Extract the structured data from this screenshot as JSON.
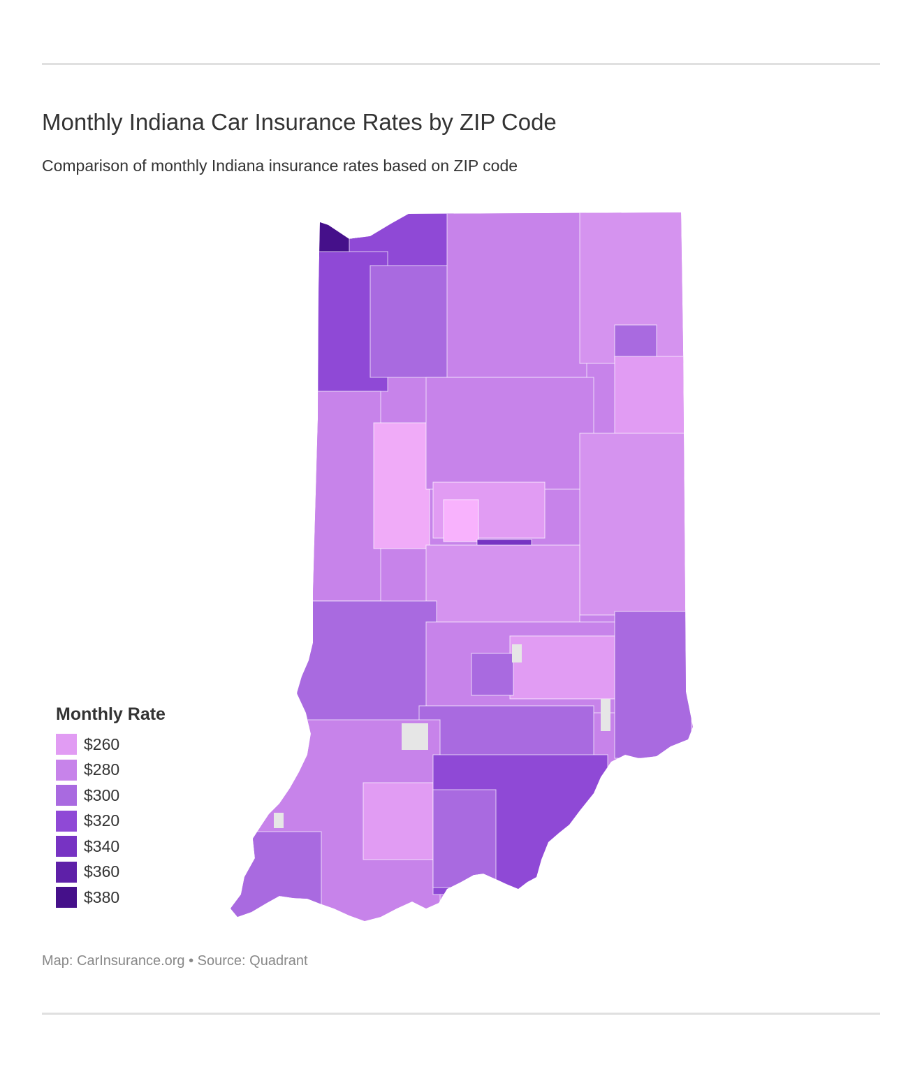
{
  "title": "Monthly Indiana Car Insurance Rates by ZIP Code",
  "subtitle": "Comparison of monthly Indiana insurance rates based on ZIP code",
  "legend": {
    "title": "Monthly Rate",
    "items": [
      {
        "label": "$260",
        "color": "#e19cf3"
      },
      {
        "label": "$280",
        "color": "#c783ea"
      },
      {
        "label": "$300",
        "color": "#a96ae0"
      },
      {
        "label": "$320",
        "color": "#8f49d6"
      },
      {
        "label": "$340",
        "color": "#7733c3"
      },
      {
        "label": "$360",
        "color": "#5e20a8"
      },
      {
        "label": "$380",
        "color": "#45108a"
      }
    ]
  },
  "map": {
    "region": "Indiana",
    "no_data_color": "#e6e6e6",
    "highest_rates_areas": [
      "northwest corner (Lake County)",
      "Indianapolis metro"
    ],
    "lowest_rates_areas": [
      "central-west",
      "east-central"
    ]
  },
  "source": "Map: CarInsurance.org • Source: Quadrant"
}
